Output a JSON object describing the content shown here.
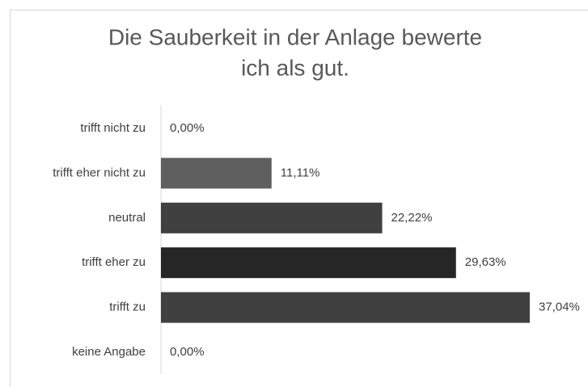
{
  "chart_data": {
    "type": "bar",
    "orientation": "horizontal",
    "title": [
      "Die Sauberkeit in der Anlage bewerte",
      "ich als gut."
    ],
    "categories": [
      "trifft nicht zu",
      "trifft eher nicht zu",
      "neutral",
      "trifft eher zu",
      "trifft zu",
      "keine Angabe"
    ],
    "values": [
      0,
      11.11,
      22.22,
      29.63,
      37.04,
      0
    ],
    "value_labels": [
      "0,00%",
      "11,11%",
      "22,22%",
      "29,63%",
      "37,04%",
      "0,00%"
    ],
    "colors": [
      "#404040",
      "#5f5f5f",
      "#404040",
      "#262626",
      "#404040",
      "#404040"
    ]
  }
}
